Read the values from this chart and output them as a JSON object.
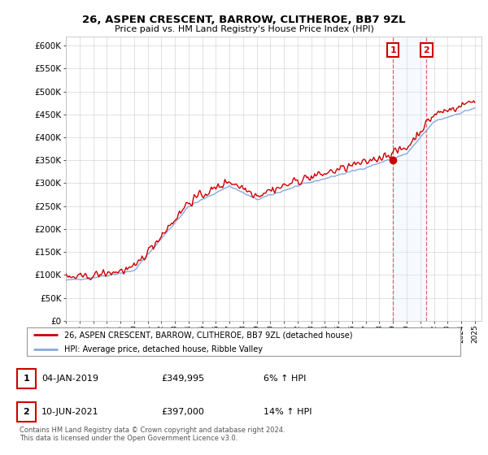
{
  "title": "26, ASPEN CRESCENT, BARROW, CLITHEROE, BB7 9ZL",
  "subtitle": "Price paid vs. HM Land Registry's House Price Index (HPI)",
  "ylim": [
    0,
    620000
  ],
  "yticks": [
    0,
    50000,
    100000,
    150000,
    200000,
    250000,
    300000,
    350000,
    400000,
    450000,
    500000,
    550000,
    600000
  ],
  "ytick_labels": [
    "£0",
    "£50K",
    "£100K",
    "£150K",
    "£200K",
    "£250K",
    "£300K",
    "£350K",
    "£400K",
    "£450K",
    "£500K",
    "£550K",
    "£600K"
  ],
  "legend_line1": "26, ASPEN CRESCENT, BARROW, CLITHEROE, BB7 9ZL (detached house)",
  "legend_line2": "HPI: Average price, detached house, Ribble Valley",
  "annotation1_label": "1",
  "annotation1_date": "04-JAN-2019",
  "annotation1_price": "£349,995",
  "annotation1_hpi": "6% ↑ HPI",
  "annotation1_year": 2019.0,
  "annotation1_value": 349995,
  "annotation2_label": "2",
  "annotation2_date": "10-JUN-2021",
  "annotation2_price": "£397,000",
  "annotation2_hpi": "14% ↑ HPI",
  "annotation2_year": 2021.45,
  "annotation2_value": 397000,
  "price_line_color": "#cc0000",
  "hpi_line_color": "#88aadd",
  "annotation_box_color": "#cc0000",
  "vline_color": "#dd4444",
  "shade_color": "#ddeeff",
  "footer_text": "Contains HM Land Registry data © Crown copyright and database right 2024.\nThis data is licensed under the Open Government Licence v3.0.",
  "background_color": "#ffffff",
  "grid_color": "#cccccc"
}
